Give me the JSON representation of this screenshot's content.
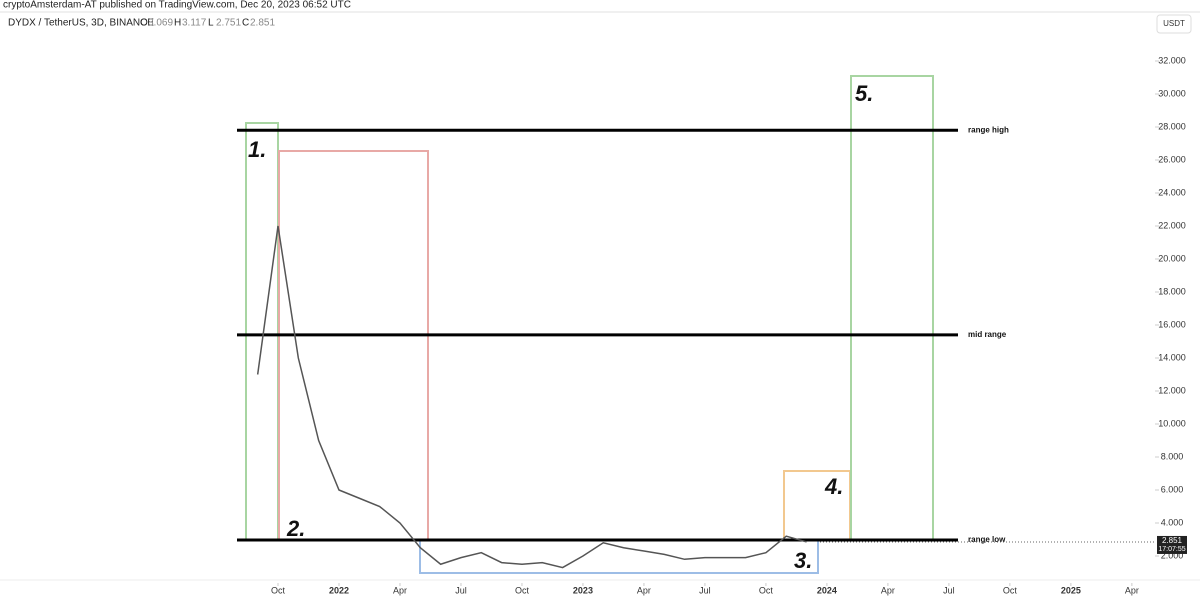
{
  "header": {
    "author_line": "cryptoAmsterdam-AT published on TradingView.com, Dec 20, 2023 06:52 UTC",
    "symbol": "DYDX / TetherUS, 3D, BINANCE",
    "ohlc": [
      {
        "key": "O",
        "value": 3.069
      },
      {
        "key": "H",
        "value": 3.117
      },
      {
        "key": "L",
        "value": 2.751
      },
      {
        "key": "C",
        "value": 2.851
      }
    ],
    "currency": "USDT"
  },
  "chart_data": {
    "type": "line",
    "x": [
      "2021-09",
      "2021-10",
      "2021-11",
      "2021-12",
      "2022-01",
      "2022-02",
      "2022-03",
      "2022-04",
      "2022-05",
      "2022-06",
      "2022-07",
      "2022-08",
      "2022-09",
      "2022-10",
      "2022-11",
      "2022-12",
      "2023-01",
      "2023-02",
      "2023-03",
      "2023-04",
      "2023-05",
      "2023-06",
      "2023-07",
      "2023-08",
      "2023-09",
      "2023-10",
      "2023-11",
      "2023-12"
    ],
    "series": [
      {
        "name": "DYDX",
        "color": "#555555",
        "values": [
          13,
          22,
          14,
          9,
          6,
          5.5,
          5,
          4,
          2.5,
          1.5,
          1.9,
          2.2,
          1.6,
          1.5,
          1.6,
          1.3,
          2.0,
          2.8,
          2.5,
          2.3,
          2.1,
          1.8,
          1.9,
          1.9,
          1.9,
          2.2,
          3.2,
          2.851
        ]
      }
    ],
    "ylim": [
      2,
      32
    ],
    "yticks": [
      {
        "value": 2,
        "label": "2.000"
      },
      {
        "value": 4,
        "label": "4.000"
      },
      {
        "value": 6,
        "label": "6.000"
      },
      {
        "value": 8,
        "label": "8.000"
      },
      {
        "value": 10,
        "label": "10.000"
      },
      {
        "value": 12,
        "label": "12.000"
      },
      {
        "value": 14,
        "label": "14.000"
      },
      {
        "value": 16,
        "label": "16.000"
      },
      {
        "value": 18,
        "label": "18.000"
      },
      {
        "value": 20,
        "label": "20.000"
      },
      {
        "value": 22,
        "label": "22.000"
      },
      {
        "value": 24,
        "label": "24.000"
      },
      {
        "value": 26,
        "label": "26.000"
      },
      {
        "value": 28,
        "label": "28.000"
      },
      {
        "value": 30,
        "label": "30.000"
      },
      {
        "value": 32,
        "label": "32.000"
      }
    ],
    "xticks": [
      {
        "value": "2021-10",
        "label": "Oct"
      },
      {
        "value": "2022-01",
        "label": "2022"
      },
      {
        "value": "2022-04",
        "label": "Apr"
      },
      {
        "value": "2022-07",
        "label": "Jul"
      },
      {
        "value": "2022-10",
        "label": "Oct"
      },
      {
        "value": "2023-01",
        "label": "2023"
      },
      {
        "value": "2023-04",
        "label": "Apr"
      },
      {
        "value": "2023-07",
        "label": "Jul"
      },
      {
        "value": "2023-10",
        "label": "Oct"
      },
      {
        "value": "2024-01",
        "label": "2024"
      },
      {
        "value": "2024-04",
        "label": "Apr"
      },
      {
        "value": "2024-07",
        "label": "Jul"
      },
      {
        "value": "2024-10",
        "label": "Oct"
      },
      {
        "value": "2025-01",
        "label": "2025"
      },
      {
        "value": "2025-04",
        "label": "Apr"
      }
    ],
    "levels": [
      {
        "label": "range high",
        "value": 27.8
      },
      {
        "label": "mid range",
        "value": 15.4
      },
      {
        "label": "range low",
        "value": 2.97
      }
    ],
    "last_price": 2.851,
    "countdown": "17:07:55",
    "annotations": [
      "1.",
      "2.",
      "3.",
      "4.",
      "5."
    ]
  }
}
